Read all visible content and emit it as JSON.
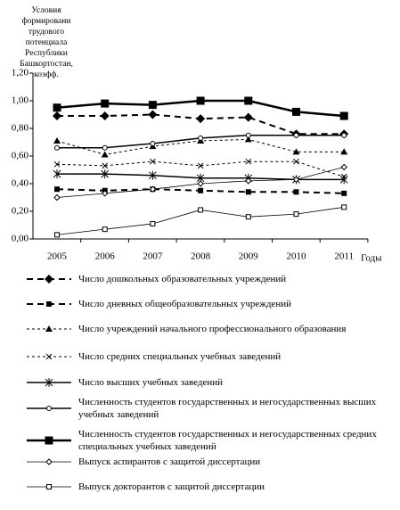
{
  "chart_data": {
    "type": "line",
    "ylabel": [
      "Условия",
      "формировани",
      "трудового",
      "потенциала",
      "Республики",
      "Башкортостан,",
      "коэфф."
    ],
    "xlabel": "Годы",
    "categories": [
      "2005",
      "2006",
      "2007",
      "2008",
      "2009",
      "2010",
      "2011"
    ],
    "ylim": [
      0,
      1.2
    ],
    "yticks": [
      {
        "value": 0,
        "label": "0,00"
      },
      {
        "value": 0.2,
        "label": "0,20"
      },
      {
        "value": 0.4,
        "label": "0,40"
      },
      {
        "value": 0.6,
        "label": "0,60"
      },
      {
        "value": 0.8,
        "label": "0,80"
      },
      {
        "value": 1,
        "label": "1,00"
      },
      {
        "value": 1.2,
        "label": "1,20"
      }
    ],
    "series": [
      {
        "name": "Число дошкольных образовательных учреждений",
        "color": "#000",
        "style": "dashed",
        "marker": "diamond",
        "values": [
          0.89,
          0.89,
          0.9,
          0.87,
          0.88,
          0.76,
          0.76
        ]
      },
      {
        "name": "Число дневных общеобразовательных учреждений",
        "color": "#000",
        "style": "dashed",
        "marker": "square",
        "values": [
          0.36,
          0.35,
          0.36,
          0.35,
          0.34,
          0.34,
          0.33
        ]
      },
      {
        "name": "Число учреждений начального профессионального образования",
        "color": "#000",
        "style": "dotted",
        "marker": "triangle",
        "values": [
          0.71,
          0.61,
          0.67,
          0.71,
          0.72,
          0.63,
          0.63
        ]
      },
      {
        "name": "Число средних специальных учебных заведений",
        "color": "#000",
        "style": "dotted",
        "marker": "cross",
        "values": [
          0.54,
          0.53,
          0.56,
          0.53,
          0.56,
          0.56,
          0.45
        ]
      },
      {
        "name": "Число высших учебных заведений",
        "color": "#000",
        "style": "solid",
        "marker": "asterisk",
        "values": [
          0.47,
          0.47,
          0.46,
          0.44,
          0.44,
          0.43,
          0.43
        ]
      },
      {
        "name": "Численность студентов государственных и негосударственных высших учебных заведений",
        "color": "#000",
        "style": "solid",
        "marker": "circle",
        "values": [
          0.66,
          0.66,
          0.69,
          0.73,
          0.75,
          0.75,
          0.75
        ]
      },
      {
        "name": "Численность студентов государственных и негосударственных средних специальных учебных заведений",
        "color": "#000",
        "style": "bold",
        "marker": "bigsquare",
        "values": [
          0.95,
          0.98,
          0.97,
          1,
          1,
          0.92,
          0.89
        ]
      },
      {
        "name": "Выпуск аспирантов с защитой диссертации",
        "color": "#000",
        "style": "thin",
        "marker": "opendiamond",
        "values": [
          0.3,
          0.33,
          0.36,
          0.4,
          0.42,
          0.43,
          0.52
        ]
      },
      {
        "name": "Выпуск докторантов с защитой диссертации",
        "color": "#000",
        "style": "thin",
        "marker": "opensquare",
        "values": [
          0.03,
          0.07,
          0.11,
          0.21,
          0.16,
          0.18,
          0.23
        ]
      }
    ]
  }
}
